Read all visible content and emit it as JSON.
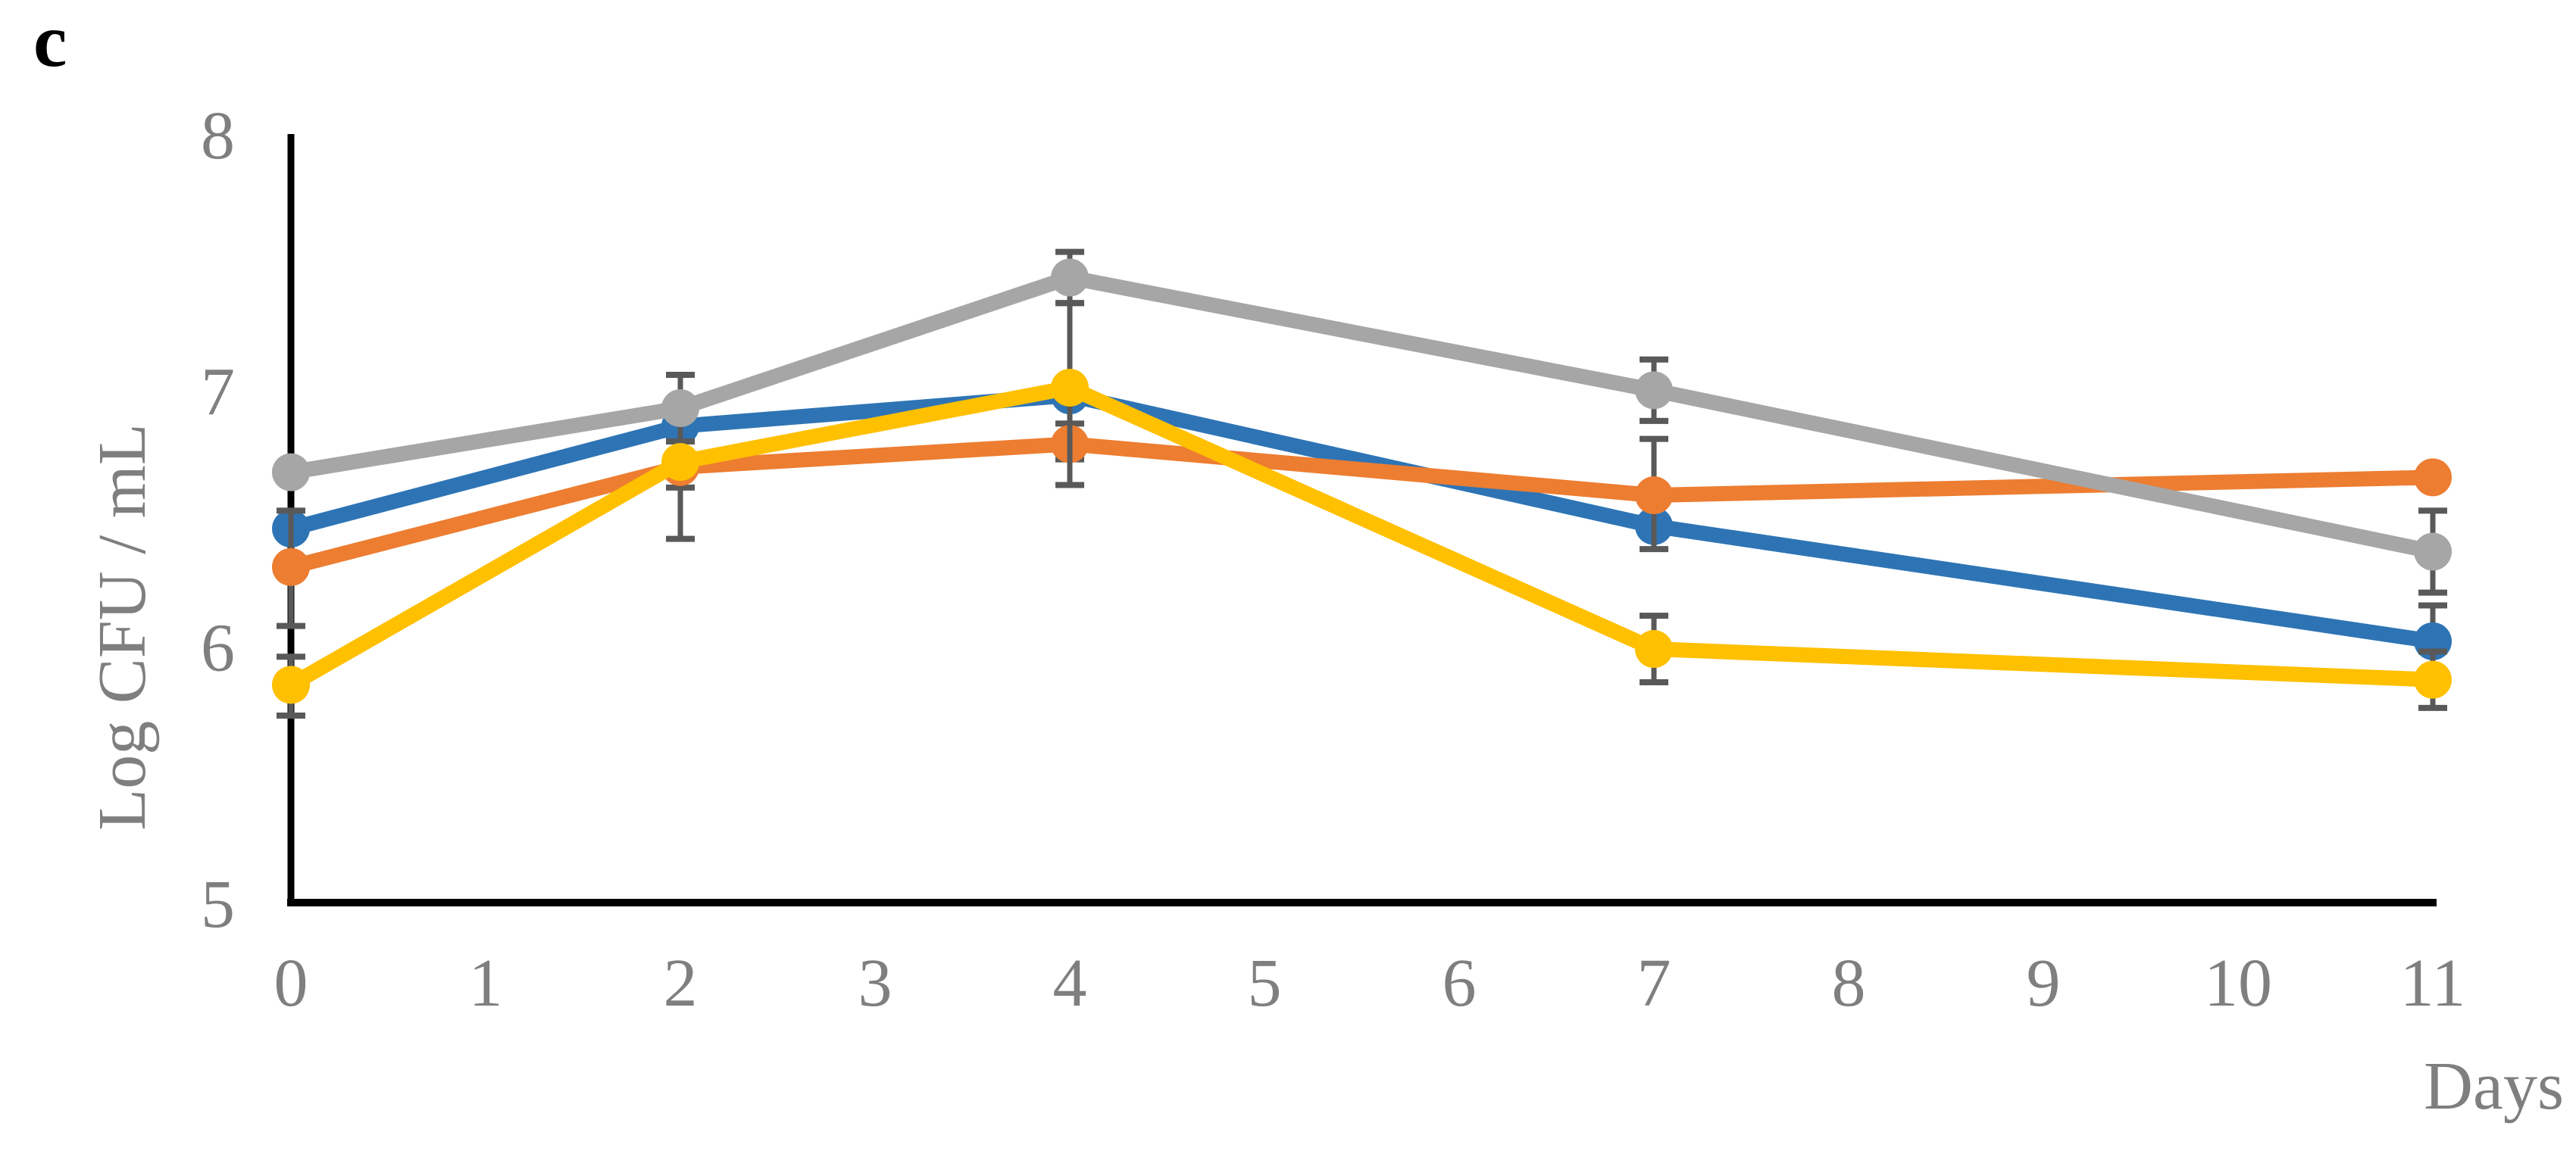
{
  "panel_label": "c",
  "colors": {
    "axis": "#000000",
    "tick_label": "#7f7f7f",
    "axis_title": "#7f7f7f",
    "error_bar": "#595959"
  },
  "chart_data": {
    "type": "line",
    "title": "",
    "xlabel": "Days",
    "ylabel": "Log CFU / mL",
    "xlim": [
      0,
      11
    ],
    "ylim": [
      5,
      8
    ],
    "x_tick_labels": [
      "0",
      "1",
      "2",
      "3",
      "4",
      "5",
      "6",
      "7",
      "8",
      "9",
      "10",
      "11"
    ],
    "y_tick_labels": [
      "8",
      "7",
      "6",
      "5"
    ],
    "grid": false,
    "legend_position": "none",
    "x": [
      0,
      2,
      4,
      7,
      11
    ],
    "series": [
      {
        "name": "blue",
        "color": "#2E74B5",
        "values": [
          6.46,
          6.86,
          6.98,
          6.47,
          6.02
        ],
        "err_up": [
          0,
          0,
          0,
          0,
          0.14
        ],
        "err_down": [
          0,
          0.24,
          0,
          0,
          0.14
        ]
      },
      {
        "name": "orange",
        "color": "#ED7D31",
        "values": [
          6.31,
          6.7,
          6.79,
          6.59,
          6.66
        ],
        "err_up": [
          0.22,
          0,
          0.08,
          0.22,
          0
        ],
        "err_down": [
          0.23,
          0.28,
          0.06,
          0.21,
          0
        ]
      },
      {
        "name": "gray",
        "color": "#A6A6A6",
        "values": [
          6.68,
          6.93,
          7.44,
          7.0,
          6.37
        ],
        "err_up": [
          0,
          0.13,
          0.1,
          0.12,
          0.16
        ],
        "err_down": [
          0,
          0.13,
          0.1,
          0.12,
          0.16
        ]
      },
      {
        "name": "yellow",
        "color": "#FFC000",
        "values": [
          5.85,
          6.72,
          7.01,
          5.99,
          5.87
        ],
        "err_up": [
          0.11,
          0,
          0.33,
          0.13,
          0.11
        ],
        "err_down": [
          0.12,
          0,
          0.38,
          0.13,
          0.11
        ]
      }
    ]
  }
}
